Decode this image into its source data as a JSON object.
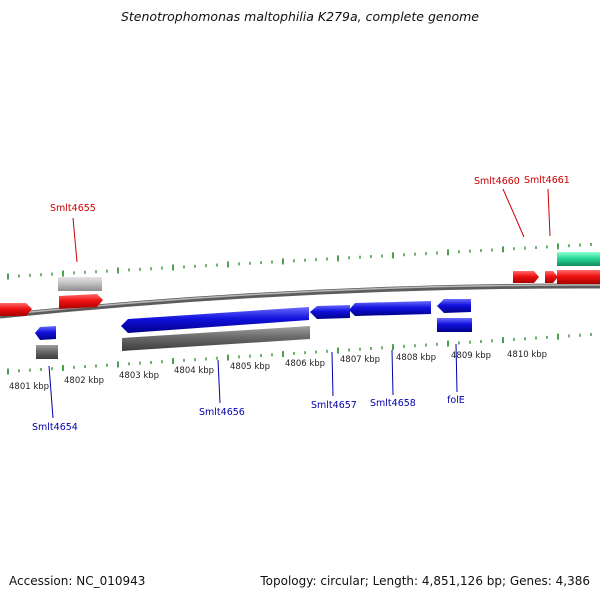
{
  "title": "Stenotrophomonas maltophilia K279a, complete genome",
  "footer": {
    "accession": "Accession: NC_010943",
    "topology": "Topology: circular; Length: 4,851,126 bp; Genes: 4,386"
  },
  "colors": {
    "forward_gene": "#ee1111",
    "reverse_gene": "#1111dd",
    "other_feature": "#666666",
    "light_feature": "#bbbbbb",
    "teal_feature": "#22dd99",
    "backbone": "#888888",
    "tick": "#228822",
    "forward_label": "#cc0000",
    "reverse_label": "#0000aa"
  },
  "kbp_labels": [
    "4801 kbp",
    "4802 kbp",
    "4803 kbp",
    "4804 kbp",
    "4805 kbp",
    "4806 kbp",
    "4807 kbp",
    "4808 kbp",
    "4809 kbp",
    "4810 kbp"
  ],
  "gene_labels": {
    "forward": [
      "Smlt4655",
      "Smlt4660",
      "Smlt4661"
    ],
    "reverse": [
      "Smlt4654",
      "Smlt4656",
      "Smlt4657",
      "Smlt4658",
      "folE"
    ]
  }
}
